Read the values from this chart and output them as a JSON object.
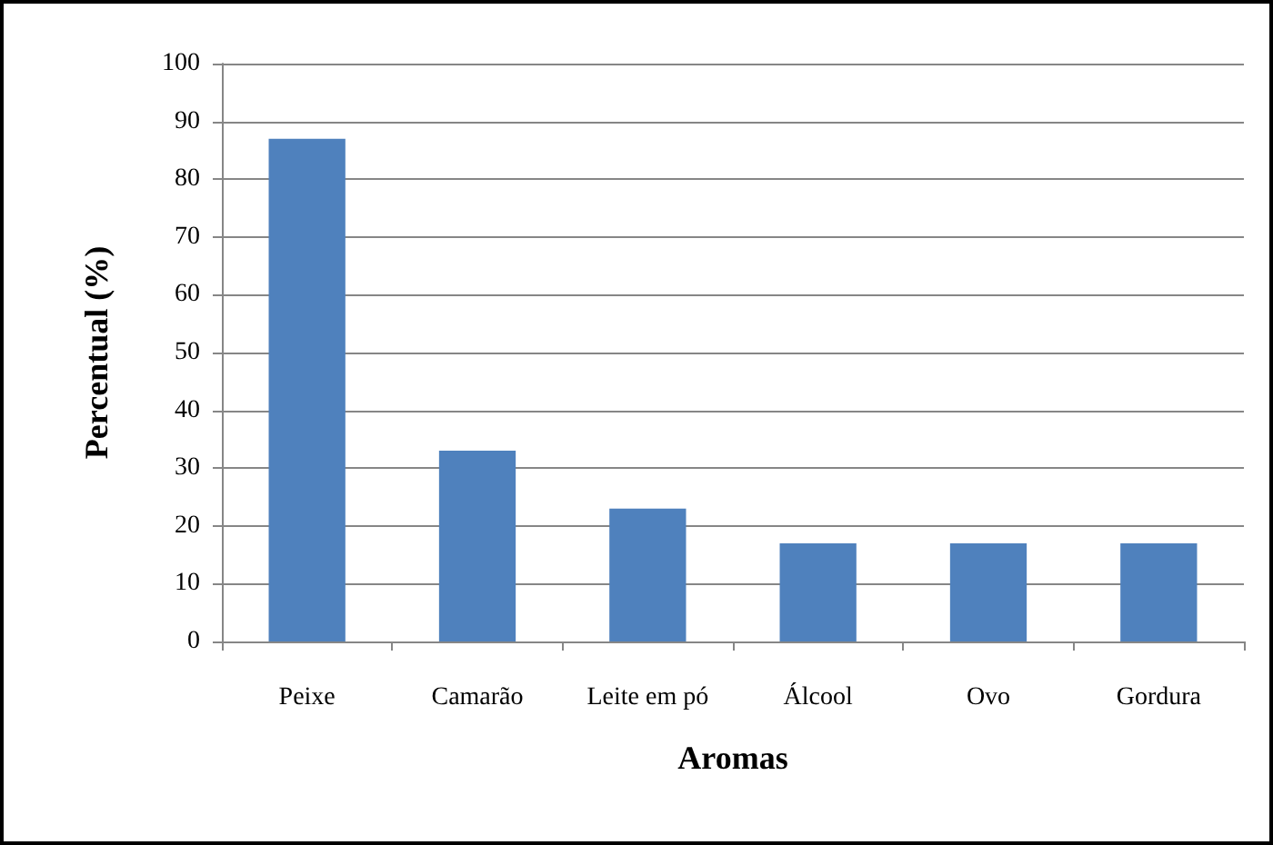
{
  "chart_data": {
    "type": "bar",
    "xlabel": "Aromas",
    "ylabel": "Percentual (%)",
    "categories": [
      "Peixe",
      "Camarão",
      "Leite em pó",
      "Álcool",
      "Ovo",
      "Gordura"
    ],
    "values": [
      87,
      33,
      23,
      17,
      17,
      17
    ],
    "color": "#4f81bd",
    "ylim": [
      0,
      100
    ],
    "yticks": [
      0,
      10,
      20,
      30,
      40,
      50,
      60,
      70,
      80,
      90,
      100
    ],
    "grid": "y"
  }
}
